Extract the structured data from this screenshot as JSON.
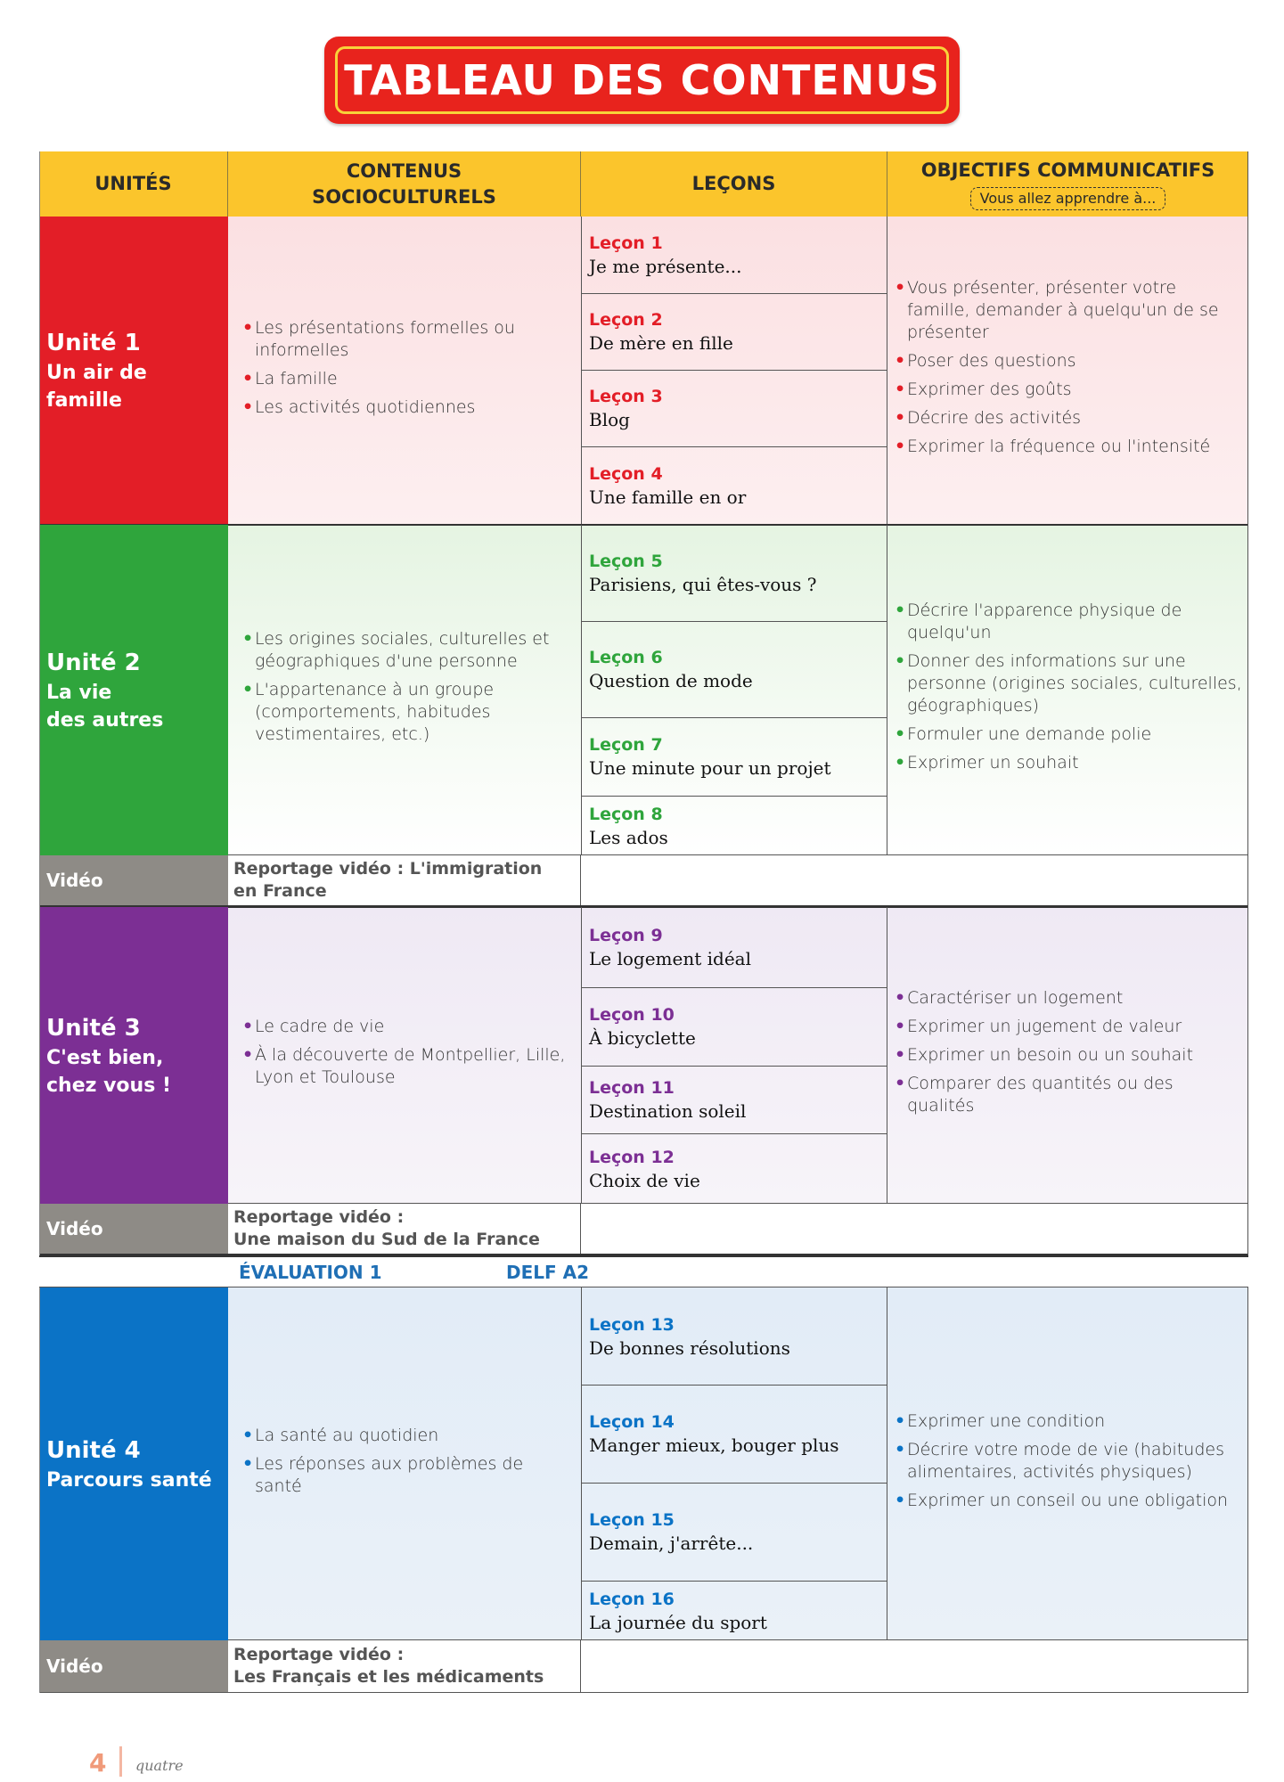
{
  "title": "TABLEAU DES CONTENUS",
  "headers": {
    "unites": "UNITÉS",
    "contenus_line1": "CONTENUS",
    "contenus_line2": "SOCIOCULTURELS",
    "lecons": "LEÇONS",
    "objectifs": "OBJECTIFS COMMUNICATIFS",
    "objectifs_sub": "Vous allez apprendre à..."
  },
  "colors": {
    "header": "#fbc52c",
    "unit1": "#e31e27",
    "unit2": "#2fa53c",
    "unit3": "#7c2f94",
    "unit4": "#0b73c6",
    "video": "#8e8b86",
    "title_red": "#e8231d",
    "title_border": "#f8d23a"
  },
  "units": [
    {
      "num": "Unité 1",
      "name_lines": [
        "Un air de",
        "famille"
      ],
      "socio": [
        "Les présentations formelles ou informelles",
        "La famille",
        "Les activités quotidiennes"
      ],
      "lessons": [
        {
          "num": "Leçon 1",
          "title": "Je me présente..."
        },
        {
          "num": "Leçon 2",
          "title": "De mère en fille"
        },
        {
          "num": "Leçon 3",
          "title": "Blog"
        },
        {
          "num": "Leçon 4",
          "title": "Une famille en or"
        }
      ],
      "objectives": [
        "Vous présenter, présenter votre famille, demander à quelqu'un de se présenter",
        "Poser des questions",
        "Exprimer des goûts",
        "Décrire des activités",
        "Exprimer la fréquence ou l'intensité"
      ]
    },
    {
      "num": "Unité 2",
      "name_lines": [
        "La vie",
        "des autres"
      ],
      "socio": [
        "Les origines sociales, culturelles et géographiques d'une personne",
        "L'appartenance à un groupe (comportements, habitudes vestimentaires, etc.)"
      ],
      "lessons": [
        {
          "num": "Leçon 5",
          "title": "Parisiens, qui êtes-vous ?"
        },
        {
          "num": "Leçon 6",
          "title": "Question de mode"
        },
        {
          "num": "Leçon 7",
          "title": "Une minute pour un projet"
        },
        {
          "num": "Leçon 8",
          "title": "Les ados"
        }
      ],
      "objectives": [
        "Décrire l'apparence physique de quelqu'un",
        "Donner des informations sur une personne (origines sociales, culturelles, géographiques)",
        "Formuler une demande polie",
        "Exprimer un souhait"
      ],
      "video": {
        "label": "Vidéo",
        "text_lines": [
          "Reportage vidéo : L'immigration",
          "en France"
        ]
      }
    },
    {
      "num": "Unité 3",
      "name_lines": [
        "C'est bien,",
        "chez vous !"
      ],
      "socio": [
        "Le cadre de vie",
        "À la découverte de Montpellier, Lille, Lyon et Toulouse"
      ],
      "lessons": [
        {
          "num": "Leçon 9",
          "title": "Le logement idéal"
        },
        {
          "num": "Leçon 10",
          "title": "À bicyclette"
        },
        {
          "num": "Leçon 11",
          "title": "Destination soleil"
        },
        {
          "num": "Leçon 12",
          "title": "Choix de vie"
        }
      ],
      "objectives": [
        "Caractériser un logement",
        "Exprimer un jugement de valeur",
        "Exprimer un besoin ou un souhait",
        "Comparer des quantités ou des qualités"
      ],
      "video": {
        "label": "Vidéo",
        "text_lines": [
          "Reportage vidéo :",
          "Une maison du Sud de la France"
        ]
      }
    },
    {
      "num": "Unité 4",
      "name_lines": [
        "Parcours santé"
      ],
      "socio": [
        "La santé au quotidien",
        "Les réponses aux problèmes de santé"
      ],
      "lessons": [
        {
          "num": "Leçon 13",
          "title": "De bonnes résolutions"
        },
        {
          "num": "Leçon 14",
          "title": "Manger mieux, bouger plus"
        },
        {
          "num": "Leçon 15",
          "title": "Demain, j'arrête..."
        },
        {
          "num": "Leçon 16",
          "title": "La journée du sport"
        }
      ],
      "objectives": [
        "Exprimer une condition",
        "Décrire votre mode de vie (habitudes alimentaires, activités physiques)",
        "Exprimer un conseil ou une obligation"
      ],
      "video": {
        "label": "Vidéo",
        "text_lines": [
          "Reportage vidéo :",
          "Les Français et les médicaments"
        ]
      }
    }
  ],
  "evaluation": {
    "label": "ÉVALUATION 1",
    "delf": "DELF A2"
  },
  "footer": {
    "page_number": "4",
    "page_word": "quatre"
  }
}
